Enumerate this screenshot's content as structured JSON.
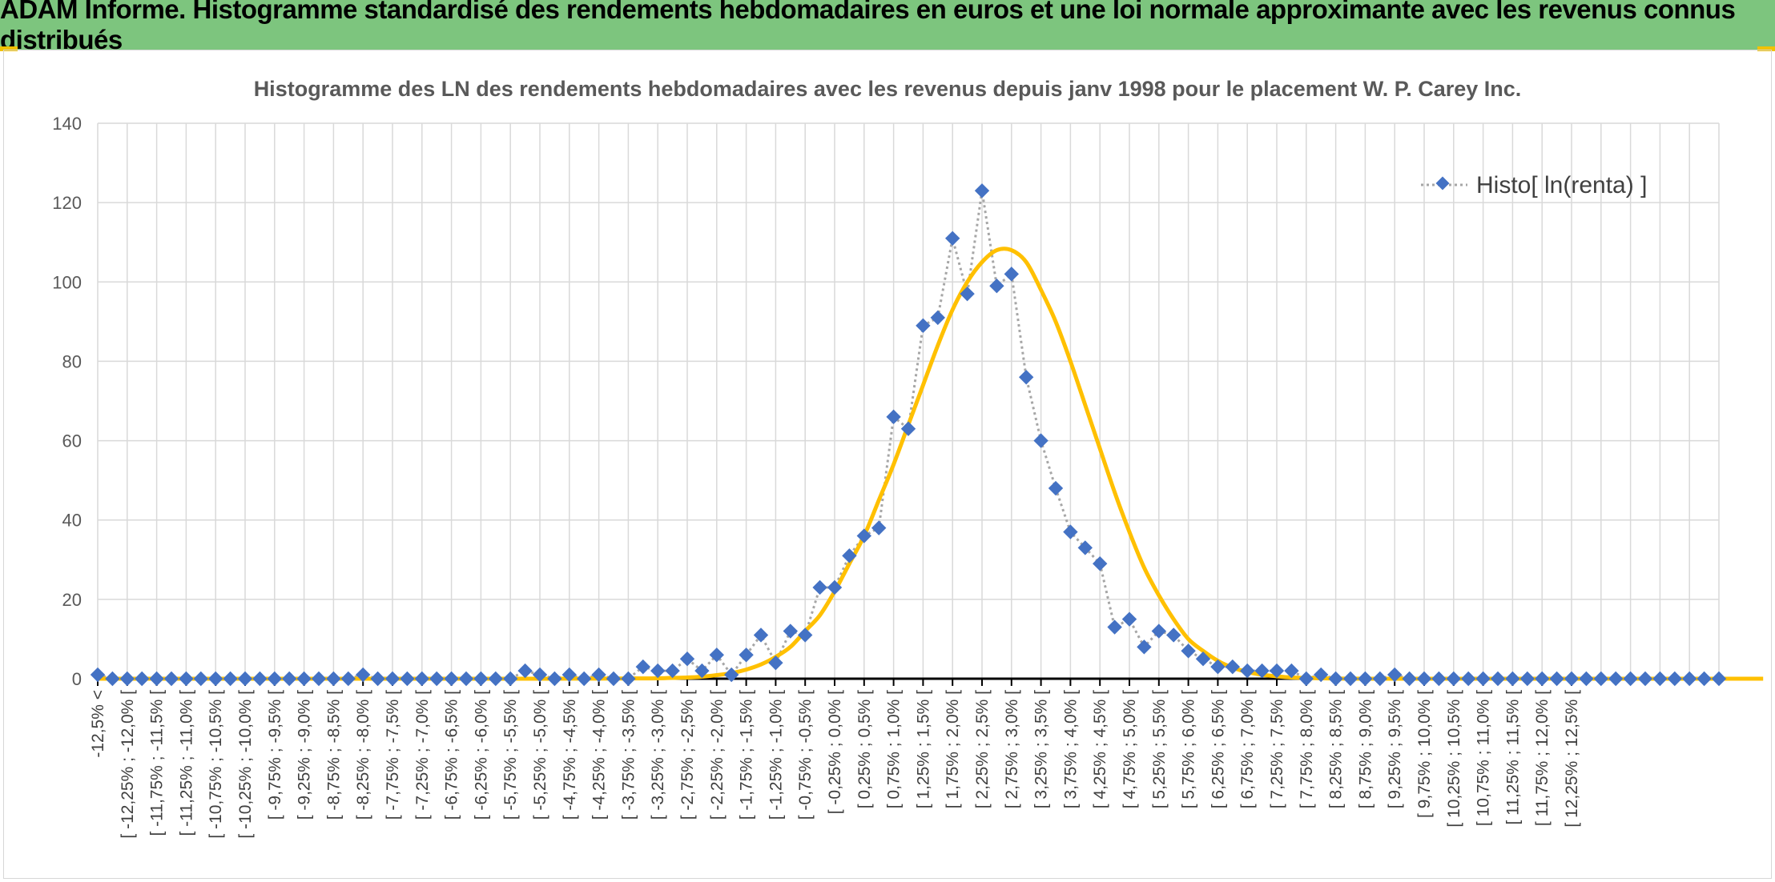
{
  "banner": {
    "title": "ADAM Informe. Histogramme standardisé des rendements hebdomadaires en euros et une loi normale approximante avec les revenus connus distribués"
  },
  "colors": {
    "banner_bg": "#7dc57e",
    "accent": "#f2c200",
    "series_marker": "#4472c4",
    "series_line": "#a6a6a6",
    "normal_curve": "#ffc000"
  },
  "chart_data": {
    "type": "line",
    "title": "Histogramme des LN des rendements hebdomadaires avec les revenus depuis janv 1998 pour le placement W. P. Carey Inc.",
    "xlabel": "",
    "ylabel": "",
    "ylim": [
      0,
      140
    ],
    "yticks": [
      0,
      20,
      40,
      60,
      80,
      100,
      120,
      140
    ],
    "grid": true,
    "legend_position": "top-right",
    "x_tick_labels": [
      "-12,5% <",
      "[ -12,25% ; -12,0% [",
      "[ -11,75% ; -11,5% [",
      "[ -11,25% ; -11,0% [",
      "[ -10,75% ; -10,5% [",
      "[ -10,25% ; -10,0% [",
      "[ -9,75% ; -9,5% [",
      "[ -9,25% ; -9,0% [",
      "[ -8,75% ; -8,5% [",
      "[ -8,25% ; -8,0% [",
      "[ -7,75% ; -7,5% [",
      "[ -7,25% ; -7,0% [",
      "[ -6,75% ; -6,5% [",
      "[ -6,25% ; -6,0% [",
      "[ -5,75% ; -5,5% [",
      "[ -5,25% ; -5,0% [",
      "[ -4,75% ; -4,5% [",
      "[ -4,25% ; -4,0% [",
      "[ -3,75% ; -3,5% [",
      "[ -3,25% ; -3,0% [",
      "[ -2,75% ; -2,5% [",
      "[ -2,25% ; -2,0% [",
      "[ -1,75% ; -1,5% [",
      "[ -1,25% ; -1,0% [",
      "[ -0,75% ; -0,5% [",
      "[ -0,25% ; 0,0% [",
      "[ 0,25% ; 0,5% [",
      "[ 0,75% ; 1,0% [",
      "[ 1,25% ; 1,5% [",
      "[ 1,75% ; 2,0% [",
      "[ 2,25% ; 2,5% [",
      "[ 2,75% ; 3,0% [",
      "[ 3,25% ; 3,5% [",
      "[ 3,75% ; 4,0% [",
      "[ 4,25% ; 4,5% [",
      "[ 4,75% ; 5,0% [",
      "[ 5,25% ; 5,5% [",
      "[ 5,75% ; 6,0% [",
      "[ 6,25% ; 6,5% [",
      "[ 6,75% ; 7,0% [",
      "[ 7,25% ; 7,5% [",
      "[ 7,75% ; 8,0% [",
      "[ 8,25% ; 8,5% [",
      "[ 8,75% ; 9,0% [",
      "[ 9,25% ; 9,5% [",
      "[ 9,75% ; 10,0% [",
      "[ 10,25% ; 10,5% [",
      "[ 10,75% ; 11,0% [",
      "[ 11,25% ; 11,5% [",
      "[ 11,75% ; 12,0% [",
      "[ 12,25% ; 12,5% ["
    ],
    "series": [
      {
        "name": "Histo[ ln(renta) ]",
        "values": [
          1,
          0,
          0,
          0,
          0,
          0,
          0,
          0,
          0,
          0,
          0,
          0,
          0,
          0,
          0,
          0,
          0,
          0,
          1,
          0,
          0,
          0,
          0,
          0,
          0,
          0,
          0,
          0,
          0,
          2,
          1,
          0,
          1,
          0,
          1,
          0,
          0,
          3,
          2,
          2,
          5,
          2,
          6,
          1,
          6,
          11,
          4,
          12,
          11,
          23,
          23,
          31,
          36,
          38,
          66,
          63,
          89,
          91,
          111,
          97,
          123,
          99,
          102,
          76,
          60,
          48,
          37,
          33,
          29,
          13,
          15,
          8,
          12,
          11,
          7,
          5,
          3,
          3,
          2,
          2,
          2,
          2,
          0,
          1,
          0,
          0,
          0,
          0,
          1,
          0,
          0,
          0,
          0,
          0,
          0,
          0,
          0,
          0,
          0,
          0,
          0,
          0,
          0,
          0,
          0,
          0,
          0,
          0,
          0,
          0,
          0
        ]
      },
      {
        "name": "",
        "values": [
          0,
          0,
          0,
          0,
          0,
          0,
          0,
          0,
          0,
          0,
          0,
          0,
          0,
          0,
          0,
          0,
          0,
          0,
          0,
          0,
          0,
          0,
          0,
          0,
          0,
          0,
          0,
          0,
          0,
          0.01,
          0.01,
          0.01,
          0.02,
          0.02,
          0.03,
          0.04,
          0.06,
          0.08,
          0.1,
          0.2,
          0.3,
          0.5,
          0.9,
          1.4,
          2.3,
          3.6,
          5.5,
          8,
          12,
          16,
          22,
          29,
          36,
          45,
          54,
          64,
          74,
          84,
          93,
          100,
          105,
          108,
          108,
          105,
          98,
          90,
          80,
          69,
          58,
          47,
          37,
          28,
          21,
          15,
          10,
          7,
          4.5,
          2.8,
          1.7,
          1,
          0.6,
          0.3,
          0.2,
          0.1,
          0.05,
          0.02,
          0.01,
          0,
          0,
          0,
          0,
          0,
          0,
          0,
          0,
          0,
          0,
          0,
          0,
          0,
          0,
          0,
          0,
          0,
          0,
          0,
          0,
          0,
          0,
          0,
          0,
          0,
          0,
          0
        ]
      }
    ]
  }
}
